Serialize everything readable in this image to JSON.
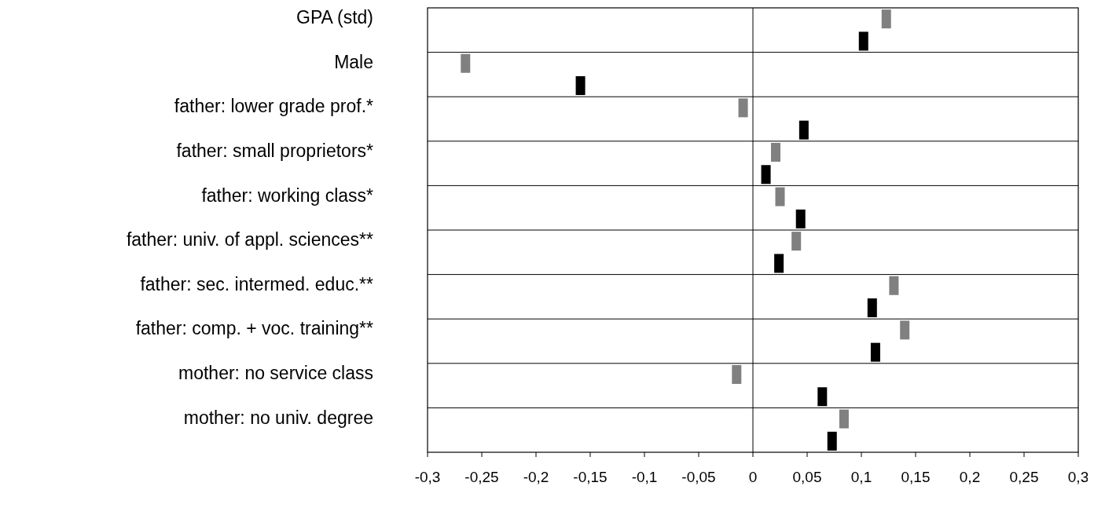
{
  "chart_data": {
    "type": "scatter",
    "orientation": "horizontal",
    "marker": "square",
    "categories": [
      "GPA (std)",
      "Male",
      "father: lower grade prof.*",
      "father: small proprietors*",
      "father: working class*",
      "father: univ. of appl. sciences**",
      "father: sec. intermed. educ.**",
      "father: comp. + voc. training**",
      "mother: no service class",
      "mother: no univ. degree"
    ],
    "series": [
      {
        "color": "#808080",
        "values": [
          0.123,
          -0.265,
          -0.009,
          0.021,
          0.025,
          0.04,
          0.13,
          0.14,
          -0.015,
          0.084
        ]
      },
      {
        "color": "#000000",
        "values": [
          0.102,
          -0.159,
          0.047,
          0.012,
          0.044,
          0.024,
          0.11,
          0.113,
          0.064,
          0.073
        ]
      }
    ],
    "xlim": [
      -0.3,
      0.3
    ],
    "xticks": [
      {
        "value": -0.3,
        "label": "-0,3"
      },
      {
        "value": -0.25,
        "label": "-0,25"
      },
      {
        "value": -0.2,
        "label": "-0,2"
      },
      {
        "value": -0.15,
        "label": "-0,15"
      },
      {
        "value": -0.1,
        "label": "-0,1"
      },
      {
        "value": -0.05,
        "label": "-0,05"
      },
      {
        "value": 0,
        "label": "0"
      },
      {
        "value": 0.05,
        "label": "0,05"
      },
      {
        "value": 0.1,
        "label": "0,1"
      },
      {
        "value": 0.15,
        "label": "0,15"
      },
      {
        "value": 0.2,
        "label": "0,2"
      },
      {
        "value": 0.25,
        "label": "0,25"
      },
      {
        "value": 0.3,
        "label": "0,3"
      }
    ]
  }
}
